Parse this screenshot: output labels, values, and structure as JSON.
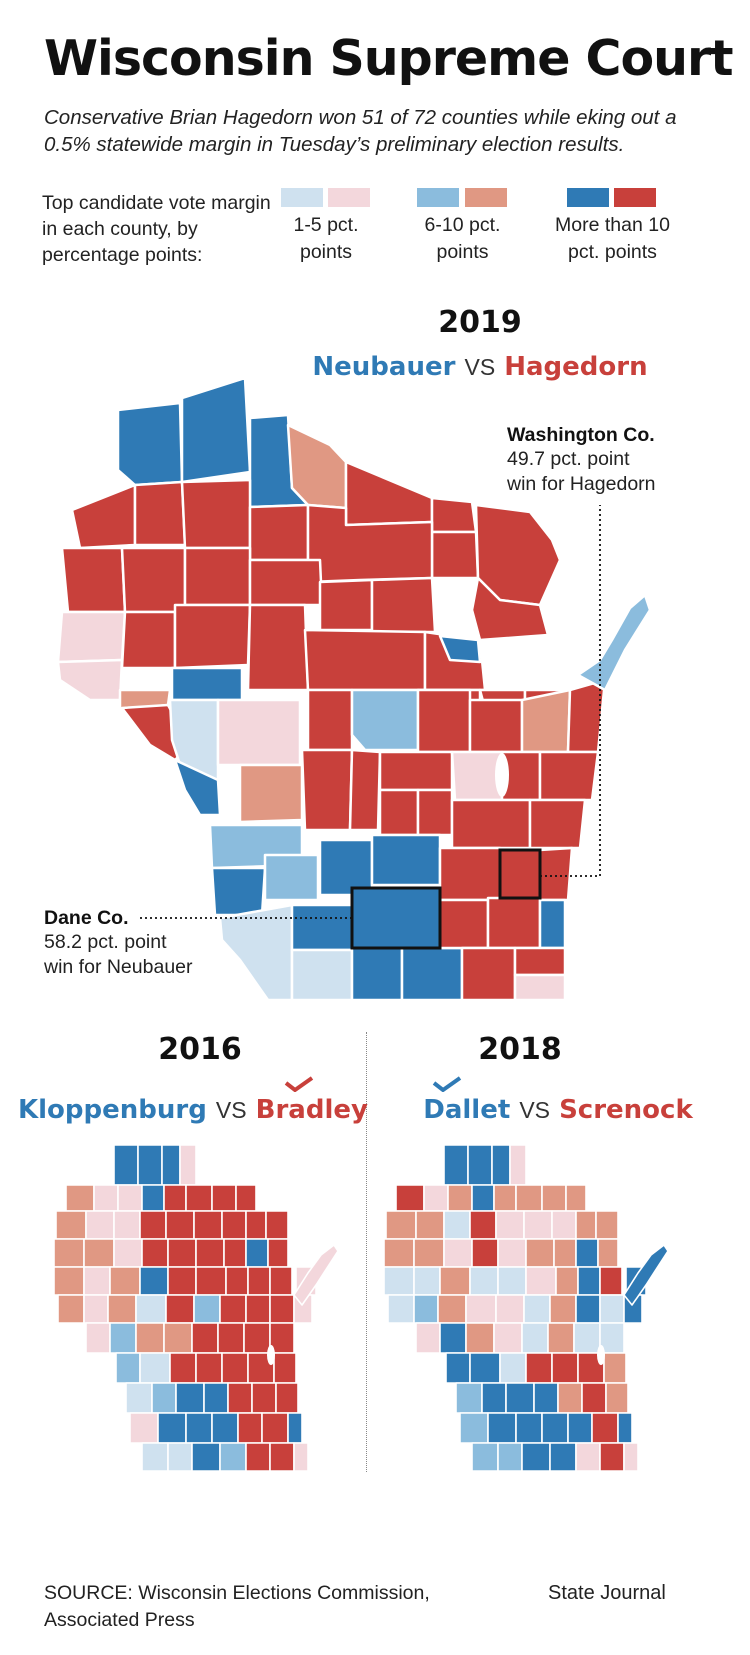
{
  "header": {
    "title": "Wisconsin Supreme Court",
    "subtitle": "Conservative Brian Hagedorn won 51 of 72 counties while eking out a 0.5% statewide margin in Tuesday’s preliminary election results."
  },
  "legend": {
    "intro": "Top candidate vote margin in each county, by percentage points:",
    "bins": [
      {
        "label": "1-5 pct. points",
        "blue": "#cfe1ef",
        "red": "#f3d7dc"
      },
      {
        "label": "6-10 pct. points",
        "blue": "#8bbcdd",
        "red": "#e09883"
      },
      {
        "label": "More than 10 pct. points",
        "blue": "#2f7ab5",
        "red": "#c8403b"
      }
    ]
  },
  "maps": {
    "main": {
      "year": "2019",
      "left_candidate": "Neubauer",
      "vs": "VS",
      "right_candidate": "Hagedorn",
      "callouts": {
        "washington": {
          "name": "Washington Co.",
          "line1": "49.7 pct. point",
          "line2": "win for Hagedorn"
        },
        "dane": {
          "name": "Dane Co.",
          "line1": "58.2 pct. point",
          "line2": "win for Neubauer"
        }
      }
    },
    "m2016": {
      "year": "2016",
      "left_candidate": "Kloppenburg",
      "vs": "VS",
      "right_candidate": "Bradley",
      "winner": "right"
    },
    "m2018": {
      "year": "2018",
      "left_candidate": "Dallet",
      "vs": "VS",
      "right_candidate": "Screnock",
      "winner": "left"
    }
  },
  "colors": {
    "blue_strong": "#2f7ab5",
    "blue_mid": "#8bbcdd",
    "blue_light": "#cfe1ef",
    "red_strong": "#c8403b",
    "red_mid": "#e09883",
    "red_light": "#f3d7dc",
    "outline": "#ffffff",
    "highlight": "#111111"
  },
  "footer": {
    "source": "SOURCE: Wisconsin Elections Commission, Associated Press",
    "credit": "State Journal"
  }
}
